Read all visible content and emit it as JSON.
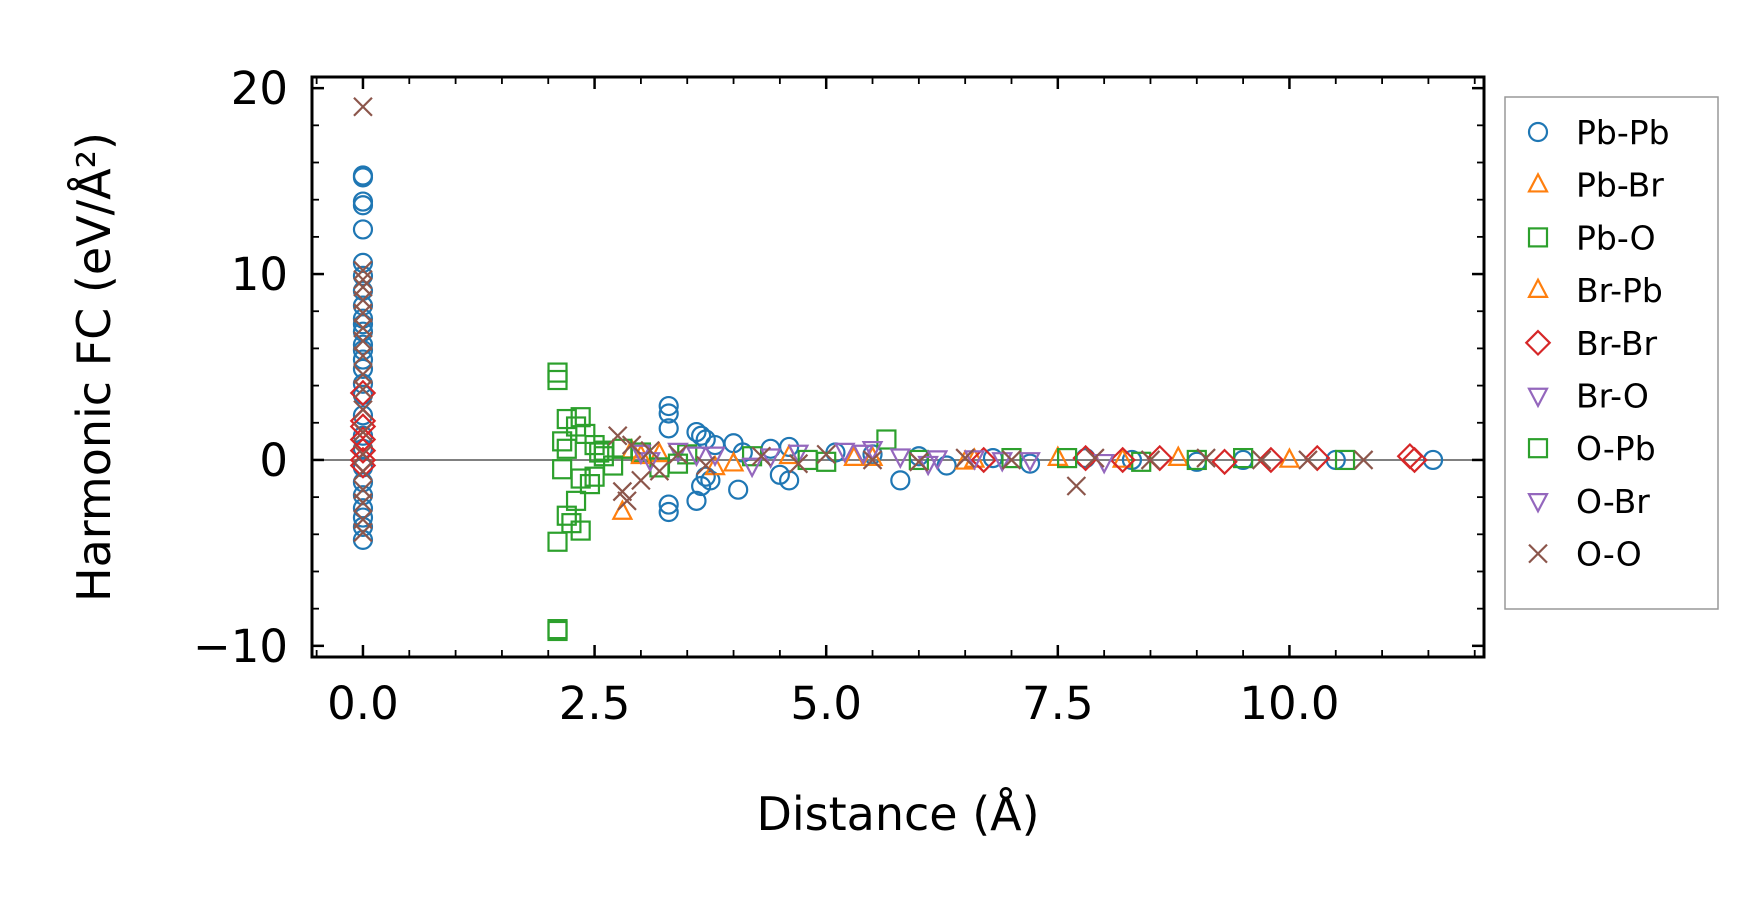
{
  "chart_data": {
    "type": "scatter",
    "title": "",
    "xlabel": "Distance (Å)",
    "ylabel": "Harmonic FC (eV/Å²)",
    "xlim": [
      -0.55,
      12.1
    ],
    "ylim": [
      -10.6,
      20.6
    ],
    "xticks": [
      0.0,
      2.5,
      5.0,
      7.5,
      10.0
    ],
    "xtick_labels": [
      "0.0",
      "2.5",
      "5.0",
      "7.5",
      "10.0"
    ],
    "yticks": [
      -10,
      0,
      10,
      20
    ],
    "ytick_labels": [
      "−10",
      "0",
      "10",
      "20"
    ],
    "hline_y": 0,
    "grid": false,
    "legend_position": "right-outside",
    "series": [
      {
        "name": "Pb-Pb",
        "marker": "circle",
        "color": "#1f77b4",
        "points": [
          [
            0,
            15.3
          ],
          [
            0,
            15.2
          ],
          [
            0,
            13.9
          ],
          [
            0,
            13.7
          ],
          [
            0,
            12.4
          ],
          [
            0,
            10.6
          ],
          [
            0,
            9.9
          ],
          [
            0,
            9.1
          ],
          [
            0,
            8.3
          ],
          [
            0,
            7.6
          ],
          [
            0,
            7.3
          ],
          [
            0,
            6.9
          ],
          [
            0,
            6.2
          ],
          [
            0,
            5.9
          ],
          [
            0,
            5.4
          ],
          [
            0,
            4.9
          ],
          [
            0,
            4.1
          ],
          [
            0,
            3.5
          ],
          [
            0,
            2.4
          ],
          [
            0,
            1.3
          ],
          [
            0,
            0.6
          ],
          [
            0,
            -0.4
          ],
          [
            0,
            -1.2
          ],
          [
            0,
            -1.9
          ],
          [
            0,
            -2.6
          ],
          [
            0,
            -3.1
          ],
          [
            0,
            -3.6
          ],
          [
            0,
            -4.3
          ],
          [
            3.3,
            2.9
          ],
          [
            3.3,
            2.5
          ],
          [
            3.3,
            1.7
          ],
          [
            3.3,
            -2.4
          ],
          [
            3.3,
            -2.8
          ],
          [
            3.6,
            1.5
          ],
          [
            3.65,
            1.3
          ],
          [
            3.7,
            1.1
          ],
          [
            3.7,
            -0.9
          ],
          [
            3.65,
            -1.4
          ],
          [
            3.6,
            -2.2
          ],
          [
            3.75,
            -1.1
          ],
          [
            3.8,
            0.8
          ],
          [
            4.0,
            0.9
          ],
          [
            4.05,
            -1.6
          ],
          [
            4.1,
            0.4
          ],
          [
            4.4,
            0.6
          ],
          [
            4.5,
            -0.8
          ],
          [
            4.6,
            0.7
          ],
          [
            4.6,
            -1.1
          ],
          [
            5.1,
            0.4
          ],
          [
            5.5,
            0.3
          ],
          [
            5.8,
            -1.1
          ],
          [
            6.0,
            0.2
          ],
          [
            6.3,
            -0.3
          ],
          [
            6.8,
            0.1
          ],
          [
            7.2,
            -0.2
          ],
          [
            7.8,
            0.1
          ],
          [
            8.3,
            0.0
          ],
          [
            9.0,
            -0.1
          ],
          [
            9.5,
            0.0
          ],
          [
            10.5,
            0.0
          ],
          [
            11.55,
            0.0
          ]
        ]
      },
      {
        "name": "Pb-Br",
        "marker": "triangle-up",
        "color": "#ff7f0e",
        "points": [
          [
            2.8,
            -2.8
          ],
          [
            2.9,
            0.5
          ],
          [
            3.2,
            0.3
          ],
          [
            3.8,
            -0.4
          ],
          [
            4.6,
            0.2
          ],
          [
            5.5,
            0.1
          ],
          [
            6.5,
            -0.1
          ],
          [
            7.5,
            0.1
          ],
          [
            8.2,
            0.0
          ],
          [
            10.0,
            0.0
          ]
        ]
      },
      {
        "name": "Pb-O",
        "marker": "square",
        "color": "#2ca02c",
        "points": [
          [
            2.1,
            4.7
          ],
          [
            2.1,
            4.3
          ],
          [
            2.1,
            -4.4
          ],
          [
            2.1,
            -9.1
          ],
          [
            2.1,
            -9.2
          ],
          [
            2.15,
            1.0
          ],
          [
            2.15,
            -0.5
          ],
          [
            2.2,
            2.2
          ],
          [
            2.2,
            -3.0
          ],
          [
            2.25,
            -3.4
          ],
          [
            2.3,
            1.8
          ],
          [
            2.3,
            -2.2
          ],
          [
            2.35,
            2.3
          ],
          [
            2.35,
            -3.8
          ],
          [
            2.4,
            1.4
          ],
          [
            2.45,
            -1.3
          ],
          [
            2.5,
            0.8
          ],
          [
            2.5,
            -0.9
          ],
          [
            2.55,
            0.4
          ],
          [
            2.6,
            0.2
          ],
          [
            2.7,
            -0.3
          ],
          [
            2.8,
            0.6
          ],
          [
            3.0,
            0.4
          ],
          [
            3.2,
            -0.4
          ],
          [
            3.5,
            0.3
          ],
          [
            4.2,
            0.2
          ],
          [
            5.0,
            -0.1
          ],
          [
            5.65,
            1.1
          ],
          [
            6.0,
            0.0
          ],
          [
            7.0,
            0.1
          ],
          [
            8.4,
            -0.1
          ],
          [
            9.5,
            0.1
          ],
          [
            10.6,
            0.0
          ]
        ]
      },
      {
        "name": "Br-Pb",
        "marker": "triangle-up",
        "color": "#ff7f0e",
        "points": [
          [
            3.0,
            0.2
          ],
          [
            4.0,
            -0.2
          ],
          [
            5.3,
            0.1
          ],
          [
            6.6,
            0.0
          ],
          [
            8.8,
            0.1
          ]
        ]
      },
      {
        "name": "Br-Br",
        "marker": "diamond",
        "color": "#d62728",
        "points": [
          [
            0,
            3.6
          ],
          [
            0,
            2.1
          ],
          [
            0,
            1.8
          ],
          [
            0,
            1.1
          ],
          [
            0,
            0.5
          ],
          [
            0,
            0.0
          ],
          [
            0,
            -0.3
          ],
          [
            6.7,
            0.0
          ],
          [
            7.8,
            0.1
          ],
          [
            8.2,
            0.0
          ],
          [
            8.6,
            0.1
          ],
          [
            9.3,
            -0.1
          ],
          [
            9.8,
            0.0
          ],
          [
            10.3,
            0.1
          ],
          [
            11.3,
            0.2
          ],
          [
            11.35,
            0.0
          ]
        ]
      },
      {
        "name": "Br-O",
        "marker": "triangle-down",
        "color": "#9467bd",
        "points": [
          [
            3.0,
            0.4
          ],
          [
            3.4,
            0.5
          ],
          [
            3.8,
            0.3
          ],
          [
            4.2,
            -0.3
          ],
          [
            4.7,
            0.4
          ],
          [
            5.2,
            0.5
          ],
          [
            5.5,
            0.6
          ],
          [
            5.8,
            0.2
          ],
          [
            6.1,
            -0.2
          ],
          [
            6.6,
            0.1
          ],
          [
            7.2,
            0.0
          ],
          [
            8.0,
            -0.1
          ]
        ]
      },
      {
        "name": "O-Pb",
        "marker": "square",
        "color": "#2ca02c",
        "points": [
          [
            2.2,
            0.6
          ],
          [
            2.35,
            -1.0
          ],
          [
            2.6,
            0.5
          ],
          [
            3.4,
            -0.2
          ],
          [
            4.8,
            0.0
          ],
          [
            7.6,
            0.1
          ],
          [
            9.0,
            0.0
          ]
        ]
      },
      {
        "name": "O-Br",
        "marker": "triangle-down",
        "color": "#9467bd",
        "points": [
          [
            3.1,
            0.0
          ],
          [
            3.6,
            0.3
          ],
          [
            4.4,
            0.2
          ],
          [
            5.4,
            0.4
          ],
          [
            6.2,
            0.1
          ],
          [
            6.9,
            0.0
          ]
        ]
      },
      {
        "name": "O-O",
        "marker": "x",
        "color": "#8c564b",
        "points": [
          [
            0,
            19.0
          ],
          [
            0,
            10.2
          ],
          [
            0,
            9.7
          ],
          [
            0,
            9.3
          ],
          [
            0,
            8.6
          ],
          [
            0,
            7.9
          ],
          [
            0,
            7.1
          ],
          [
            0,
            6.4
          ],
          [
            0,
            5.6
          ],
          [
            0,
            4.6
          ],
          [
            0,
            3.8
          ],
          [
            0,
            2.7
          ],
          [
            0,
            1.5
          ],
          [
            0,
            0.3
          ],
          [
            0,
            -0.6
          ],
          [
            0,
            -1.6
          ],
          [
            0,
            -2.3
          ],
          [
            0,
            -3.2
          ],
          [
            0,
            -3.9
          ],
          [
            2.75,
            1.3
          ],
          [
            2.8,
            -1.7
          ],
          [
            2.85,
            -2.2
          ],
          [
            2.9,
            0.8
          ],
          [
            3.0,
            -1.1
          ],
          [
            3.1,
            0.5
          ],
          [
            3.2,
            -0.6
          ],
          [
            3.4,
            0.3
          ],
          [
            3.7,
            -0.3
          ],
          [
            4.3,
            0.2
          ],
          [
            4.7,
            -0.2
          ],
          [
            5.0,
            0.3
          ],
          [
            5.5,
            0.0
          ],
          [
            6.0,
            -0.1
          ],
          [
            6.5,
            0.1
          ],
          [
            7.0,
            0.0
          ],
          [
            7.7,
            -1.4
          ],
          [
            7.9,
            0.1
          ],
          [
            8.5,
            0.0
          ],
          [
            9.1,
            0.1
          ],
          [
            9.7,
            0.0
          ],
          [
            10.2,
            0.0
          ],
          [
            10.8,
            0.0
          ]
        ]
      }
    ]
  }
}
